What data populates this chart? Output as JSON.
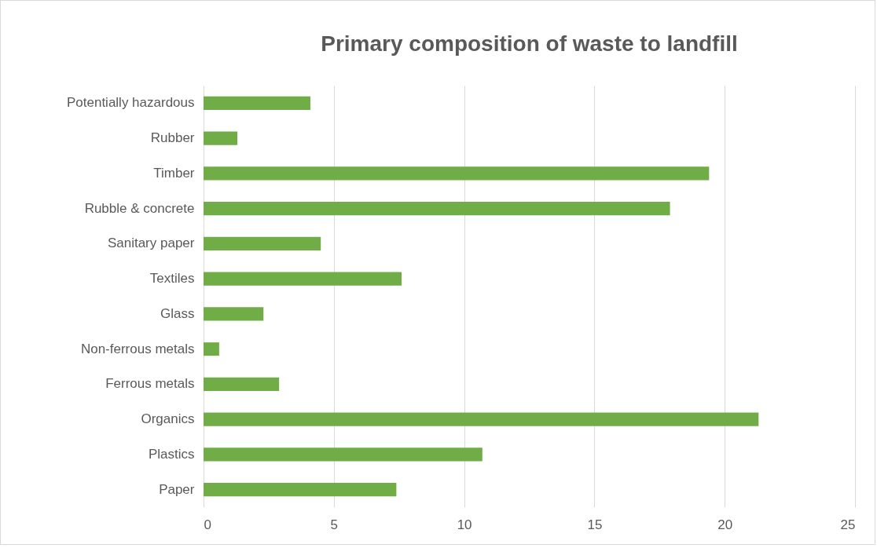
{
  "chart_data": {
    "type": "bar",
    "orientation": "horizontal",
    "title": "Primary composition of waste to landfill",
    "categories": [
      "Potentially hazardous",
      "Rubber",
      "Timber",
      "Rubble & concrete",
      "Sanitary paper",
      "Textiles",
      "Glass",
      "Non-ferrous metals",
      "Ferrous metals",
      "Organics",
      "Plastics",
      "Paper"
    ],
    "values": [
      4.1,
      1.3,
      19.4,
      17.9,
      4.5,
      7.6,
      2.3,
      0.6,
      2.9,
      21.3,
      10.7,
      7.4
    ],
    "color": "#70ad47",
    "xlim": [
      0,
      25
    ],
    "xticks": [
      0,
      5,
      10,
      15,
      20,
      25
    ],
    "grid": "x"
  }
}
